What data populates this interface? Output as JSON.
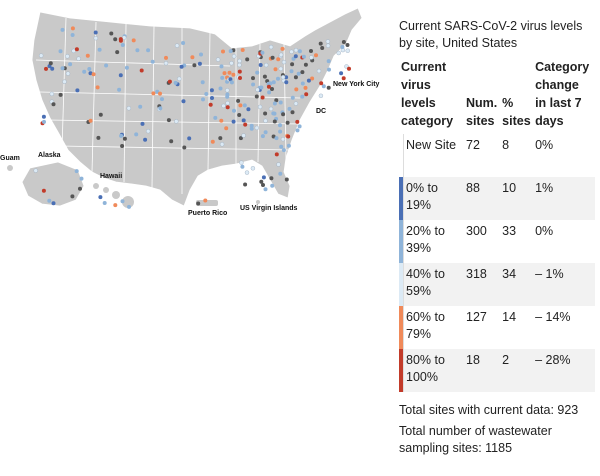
{
  "map": {
    "labels": {
      "new_york": "New York City",
      "dc": "DC",
      "guam": "Guam",
      "alaska": "Alaska",
      "hawaii": "Hawaii",
      "puerto_rico": "Puerto Rico",
      "usvi": "US Virgin Islands"
    },
    "colors": {
      "land": "#c9c9c9",
      "border": "#ffffff",
      "new_site": "#ffffff",
      "c0_19": "#4a6fb5",
      "c20_39": "#8fb4d9",
      "c40_59": "#dceaf5",
      "c60_79": "#f08a5a",
      "c80_100": "#c23b2a",
      "unknown": "#555555"
    }
  },
  "panel": {
    "title": "Current SARS-CoV-2 virus levels by site, United States",
    "headers": {
      "category": "Current virus levels category",
      "num": "Num. sites",
      "pct": "% sites",
      "change": "Category change in last 7 days"
    },
    "rows": [
      {
        "label": "New Site",
        "num": "72",
        "pct": "8",
        "change": "0%",
        "color": "#ffffff"
      },
      {
        "label": "0% to 19%",
        "num": "88",
        "pct": "10",
        "change": "1%",
        "color": "#4a6fb5"
      },
      {
        "label": "20% to 39%",
        "num": "300",
        "pct": "33",
        "change": "0%",
        "color": "#8fb4d9"
      },
      {
        "label": "40% to 59%",
        "num": "318",
        "pct": "34",
        "change": "– 1%",
        "color": "#dceaf5"
      },
      {
        "label": "60% to 79%",
        "num": "127",
        "pct": "14",
        "change": "– 14%",
        "color": "#f08a5a"
      },
      {
        "label": "80% to 100%",
        "num": "18",
        "pct": "2",
        "change": "– 28%",
        "color": "#c23b2a"
      }
    ],
    "total_current": "Total sites with current data: 923",
    "total_sampling": "Total number of wastewater sampling sites: 1185"
  }
}
